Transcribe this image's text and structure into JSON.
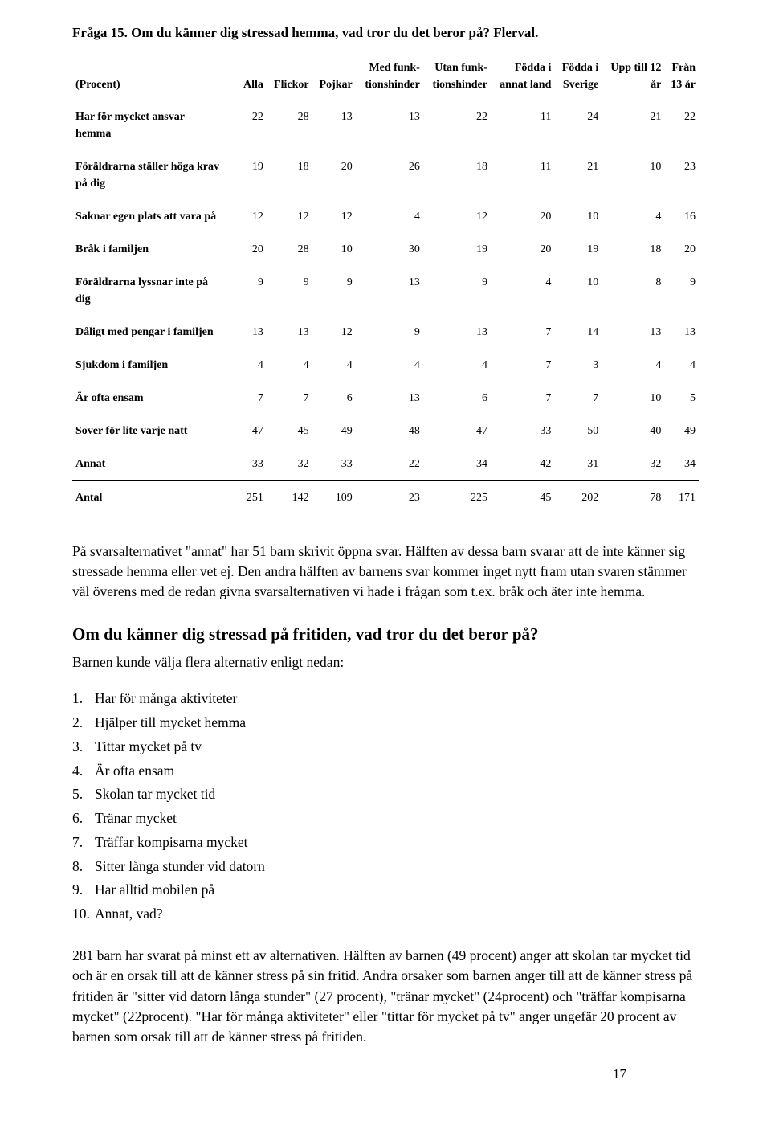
{
  "title": "Fråga 15. Om du känner dig stressad hemma, vad tror du det beror på? Flerval.",
  "table": {
    "columns": [
      "(Procent)",
      "Alla",
      "Flickor",
      "Pojkar",
      "Med funk-\ntionshinder",
      "Utan funk-\ntionshinder",
      "Födda i\nannat land",
      "Födda i\nSverige",
      "Upp till 12\når",
      "Från\n13 år"
    ],
    "rows": [
      [
        "Har för mycket ansvar\nhemma",
        "22",
        "28",
        "13",
        "13",
        "22",
        "11",
        "24",
        "21",
        "22"
      ],
      [
        "Föräldrarna ställer höga krav\npå dig",
        "19",
        "18",
        "20",
        "26",
        "18",
        "11",
        "21",
        "10",
        "23"
      ],
      [
        "Saknar egen plats att vara på",
        "12",
        "12",
        "12",
        "4",
        "12",
        "20",
        "10",
        "4",
        "16"
      ],
      [
        "Bråk i familjen",
        "20",
        "28",
        "10",
        "30",
        "19",
        "20",
        "19",
        "18",
        "20"
      ],
      [
        "Föräldrarna lyssnar inte på\ndig",
        "9",
        "9",
        "9",
        "13",
        "9",
        "4",
        "10",
        "8",
        "9"
      ],
      [
        "Dåligt med pengar i familjen",
        "13",
        "13",
        "12",
        "9",
        "13",
        "7",
        "14",
        "13",
        "13"
      ],
      [
        "Sjukdom i familjen",
        "4",
        "4",
        "4",
        "4",
        "4",
        "7",
        "3",
        "4",
        "4"
      ],
      [
        "Är ofta ensam",
        "7",
        "7",
        "6",
        "13",
        "6",
        "7",
        "7",
        "10",
        "5"
      ],
      [
        "Sover för lite varje natt",
        "47",
        "45",
        "49",
        "48",
        "47",
        "33",
        "50",
        "40",
        "49"
      ],
      [
        "Annat",
        "33",
        "32",
        "33",
        "22",
        "34",
        "42",
        "31",
        "32",
        "34"
      ],
      [
        "Antal",
        "251",
        "142",
        "109",
        "23",
        "225",
        "45",
        "202",
        "78",
        "171"
      ]
    ]
  },
  "para1": "På svarsalternativet \"annat\" har 51 barn skrivit öppna svar. Hälften av dessa barn svarar att de inte känner sig stressade hemma eller vet ej. Den andra hälften av barnens svar kommer inget nytt fram utan svaren stämmer väl överens med de redan givna svarsalternativen vi hade i frågan som t.ex. bråk och äter inte hemma.",
  "h2": "Om du känner dig stressad på fritiden, vad tror du det beror på?",
  "sub": "Barnen kunde välja flera alternativ enligt nedan:",
  "list": [
    "Har för många aktiviteter",
    "Hjälper till mycket hemma",
    "Tittar mycket på tv",
    "Är ofta ensam",
    "Skolan tar mycket tid",
    "Tränar mycket",
    "Träffar kompisarna mycket",
    "Sitter långa stunder vid datorn",
    "Har alltid mobilen på",
    "Annat, vad?"
  ],
  "para2": "281 barn har svarat på minst ett av alternativen. Hälften av barnen (49 procent) anger att skolan tar mycket tid och är en orsak till att de känner stress på sin fritid. Andra orsaker som barnen anger till att de känner stress på fritiden är \"sitter vid datorn långa stunder\" (27 procent), \"tränar mycket\" (24procent) och \"träffar kompisarna mycket\" (22procent). \"Har för många aktiviteter\" eller \"tittar för mycket på tv\" anger ungefär 20 procent av barnen som orsak till att de känner stress på fritiden.",
  "pagenum": "17"
}
